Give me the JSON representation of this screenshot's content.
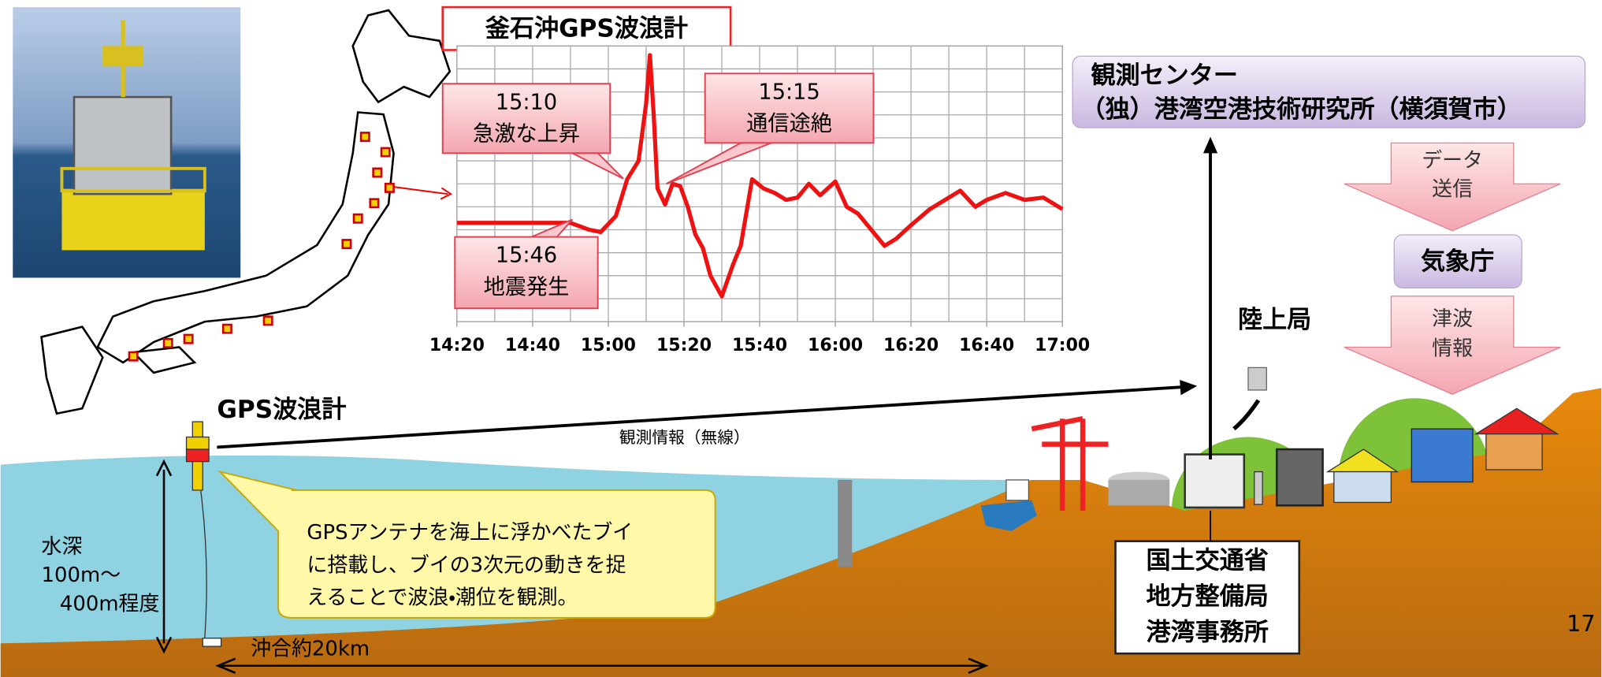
{
  "chart_data": {
    "type": "line",
    "title": "釜石沖GPS波浪計",
    "x": [
      "14:20",
      "14:40",
      "14:50",
      "14:55",
      "14:58",
      "15:02",
      "15:05",
      "15:08",
      "15:10",
      "15:11",
      "15:12",
      "15:13",
      "15:15",
      "15:17",
      "15:19",
      "15:21",
      "15:23",
      "15:25",
      "15:27",
      "15:30",
      "15:33",
      "15:35",
      "15:38",
      "15:41",
      "15:44",
      "15:47",
      "15:50",
      "15:53",
      "15:56",
      "16:00",
      "16:03",
      "16:06",
      "16:10",
      "16:13",
      "16:16",
      "16:20",
      "16:25",
      "16:30",
      "16:33",
      "16:37",
      "16:40",
      "16:45",
      "16:50",
      "16:55",
      "17:00"
    ],
    "series": [
      {
        "color": "#ee1111",
        "values": [
          4.3,
          4.3,
          4.3,
          4.0,
          3.9,
          4.6,
          6.2,
          7.0,
          9.5,
          11.6,
          9.0,
          5.8,
          5.1,
          6.0,
          5.9,
          5.0,
          3.8,
          3.2,
          2.0,
          1.1,
          2.5,
          3.3,
          6.2,
          5.8,
          5.6,
          5.3,
          5.4,
          6.0,
          5.5,
          6.1,
          5.0,
          4.7,
          3.9,
          3.3,
          3.6,
          4.2,
          4.9,
          5.4,
          5.7,
          5.0,
          5.3,
          5.6,
          5.3,
          5.4,
          4.9
        ]
      }
    ],
    "xlim": [
      "14:20",
      "17:00"
    ],
    "xticks": [
      "14:20",
      "14:40",
      "15:00",
      "15:20",
      "15:40",
      "16:00",
      "16:20",
      "16:40",
      "17:00"
    ],
    "ylim": [
      0,
      12
    ],
    "grid": true,
    "annotations": [
      [
        "15:10",
        "急激な上昇"
      ],
      [
        "15:15",
        "通信途絶"
      ],
      [
        "15:46",
        "地震発生"
      ]
    ]
  },
  "diagram": {
    "center": [
      "観測センター",
      "（独）港湾空港技術研究所（横須賀市）"
    ],
    "data_send": [
      "データ",
      "送信"
    ],
    "jma": "気象庁",
    "tsunami_info": [
      "津波",
      "情報"
    ],
    "land_station": "陸上局",
    "buoy_label": "GPS波浪計",
    "radio": "観測情報（無線）",
    "callout": [
      "GPSアンテナを海上に浮かべたブイ",
      "に搭載し、ブイの3次元の動きを捉",
      "えることで波浪・潮位を観測。"
    ],
    "depth": [
      "水深",
      "100m～",
      "400m程度"
    ],
    "offshore": "沖合約20km",
    "office": [
      "国土交通省",
      "地方整備局",
      "港湾事務所"
    ],
    "page_number": "17"
  }
}
